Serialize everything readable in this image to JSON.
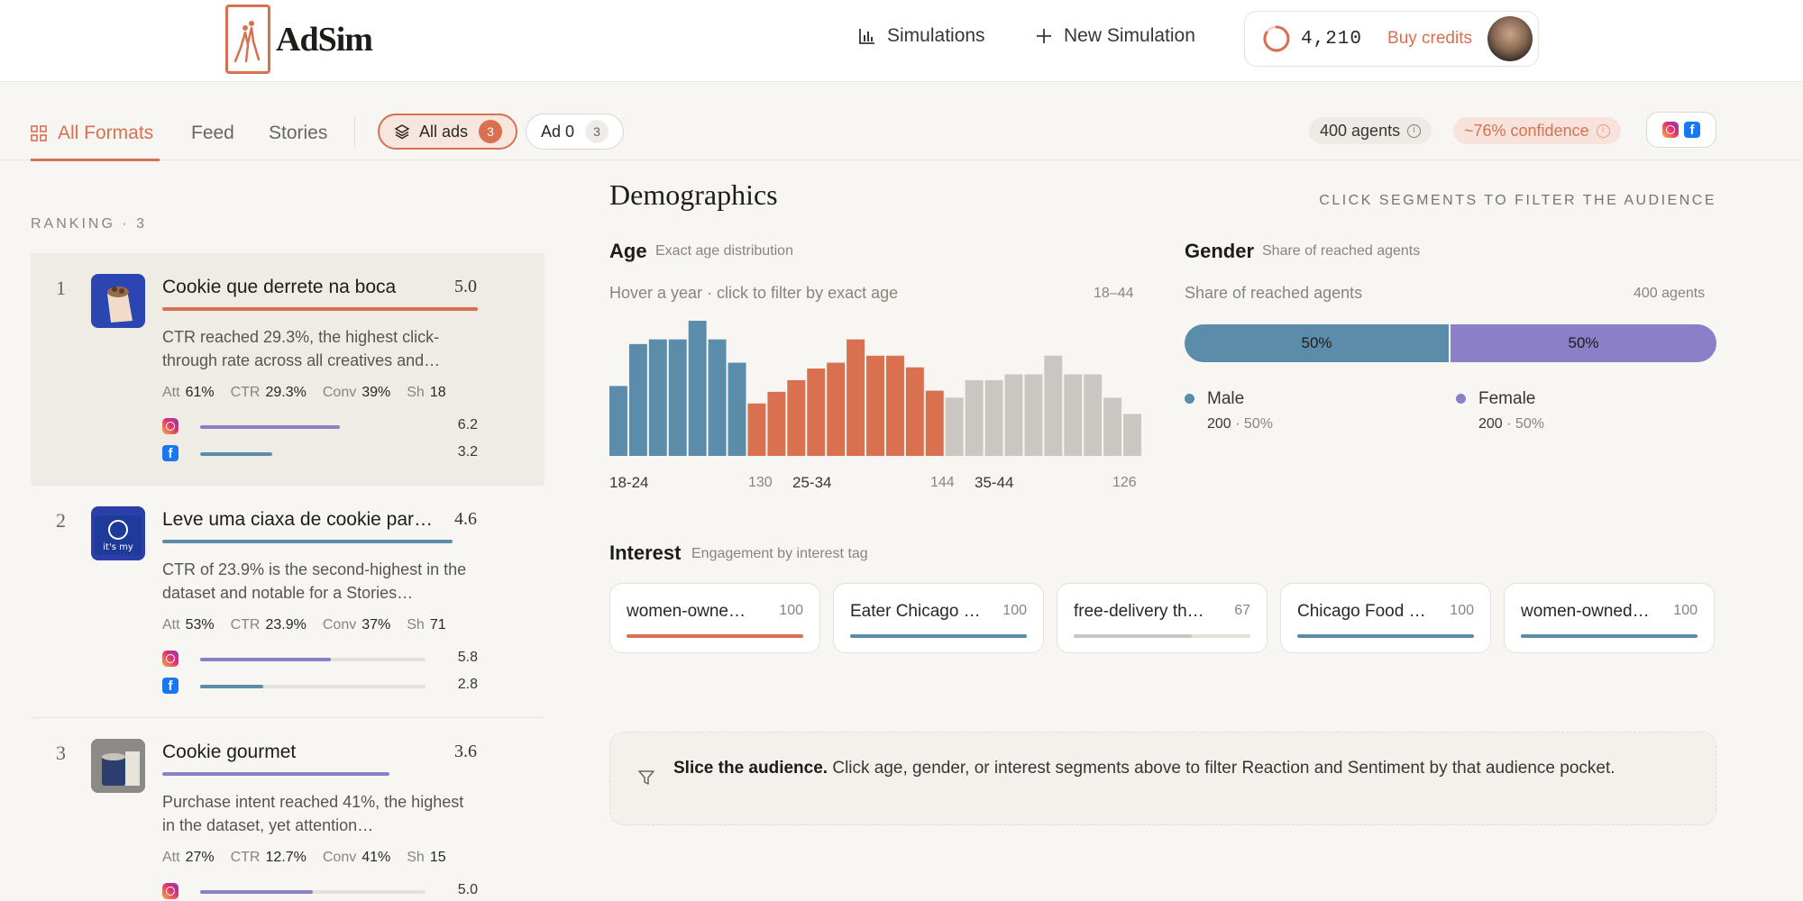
{
  "brand": {
    "name": "AdSim"
  },
  "nav": {
    "simulations": "Simulations",
    "new_simulation": "New Simulation"
  },
  "credits": {
    "value": "4,210",
    "buy_label": "Buy credits"
  },
  "tabs": [
    {
      "label": "All Formats"
    },
    {
      "label": "Feed"
    },
    {
      "label": "Stories"
    }
  ],
  "filters": {
    "all_ads": {
      "label": "All ads",
      "count": "3"
    },
    "ad0": {
      "label": "Ad 0",
      "count": "3"
    }
  },
  "meta": {
    "agents": "400 agents",
    "confidence": "~76% confidence"
  },
  "ranking": {
    "label": "RANKING · 3",
    "items": [
      {
        "rank": "1",
        "title": "Cookie que derrete na boca",
        "score": "5.0",
        "desc": "CTR reached 29.3%, the highest click-through rate across all creatives and…",
        "att_label": "Att",
        "att": "61%",
        "ctr_label": "CTR",
        "ctr": "29.3%",
        "conv_label": "Conv",
        "conv": "39%",
        "sh_label": "Sh",
        "sh": "18",
        "instagram": "6.2",
        "facebook": "3.2"
      },
      {
        "rank": "2",
        "title": "Leve uma ciaxa de cookie par…",
        "score": "4.6",
        "desc": "CTR of 23.9% is the second-highest in the dataset and notable for a Stories…",
        "att_label": "Att",
        "att": "53%",
        "ctr_label": "CTR",
        "ctr": "23.9%",
        "conv_label": "Conv",
        "conv": "37%",
        "sh_label": "Sh",
        "sh": "71",
        "instagram": "5.8",
        "facebook": "2.8"
      },
      {
        "rank": "3",
        "title": "Cookie gourmet",
        "score": "3.6",
        "desc": "Purchase intent reached 41%, the highest in the dataset, yet attention…",
        "att_label": "Att",
        "att": "27%",
        "ctr_label": "CTR",
        "ctr": "12.7%",
        "conv_label": "Conv",
        "conv": "41%",
        "sh_label": "Sh",
        "sh": "15",
        "instagram": "5.0",
        "facebook": ""
      }
    ]
  },
  "demographics": {
    "title": "Demographics",
    "hint": "CLICK SEGMENTS TO FILTER THE AUDIENCE",
    "age": {
      "title": "Age",
      "subtitle": "Exact age distribution",
      "hover_hint": "Hover a year · click to filter by exact age",
      "range": "18–44",
      "groups": [
        {
          "label": "18-24",
          "count": "130",
          "color": "#5b8caa",
          "values": [
            60,
            96,
            100,
            100,
            116,
            100,
            80
          ]
        },
        {
          "label": "25-34",
          "count": "144",
          "color": "#d9704f",
          "values": [
            45,
            55,
            65,
            75,
            80,
            100,
            86,
            86,
            76,
            56
          ]
        },
        {
          "label": "35-44",
          "count": "126",
          "color": "#cac7c2",
          "values": [
            50,
            65,
            65,
            70,
            70,
            86,
            70,
            70,
            50,
            36
          ]
        }
      ]
    },
    "gender": {
      "title": "Gender",
      "subtitle": "Share of reached agents",
      "hint": "Share of reached agents",
      "agents": "400 agents",
      "male": {
        "label": "Male",
        "count": "200",
        "pct": "50%",
        "share": 50,
        "color": "#5b8caa"
      },
      "female": {
        "label": "Female",
        "count": "200",
        "pct": "50%",
        "share": 50,
        "color": "#8b7fc7"
      }
    },
    "interest": {
      "title": "Interest",
      "subtitle": "Engagement by interest tag",
      "items": [
        {
          "label": "women-owne…",
          "value": "100",
          "level": 100,
          "color": "#d9704f"
        },
        {
          "label": "Eater Chicago …",
          "value": "100",
          "level": 100,
          "color": "#5b8caa"
        },
        {
          "label": "free-delivery th…",
          "value": "67",
          "level": 67,
          "color": "#cac7c2"
        },
        {
          "label": "Chicago Food …",
          "value": "100",
          "level": 100,
          "color": "#5b8caa"
        },
        {
          "label": "women-owned…",
          "value": "100",
          "level": 100,
          "color": "#5b8caa"
        }
      ]
    },
    "slice": {
      "bold": "Slice the audience.",
      "text": " Click age, gender, or interest segments above to filter Reaction and Sentiment by that audience pocket."
    }
  },
  "colors": {
    "accent": "#d9704f",
    "instagram_bar": "#8b7fc7",
    "facebook_bar": "#5b8caa"
  }
}
